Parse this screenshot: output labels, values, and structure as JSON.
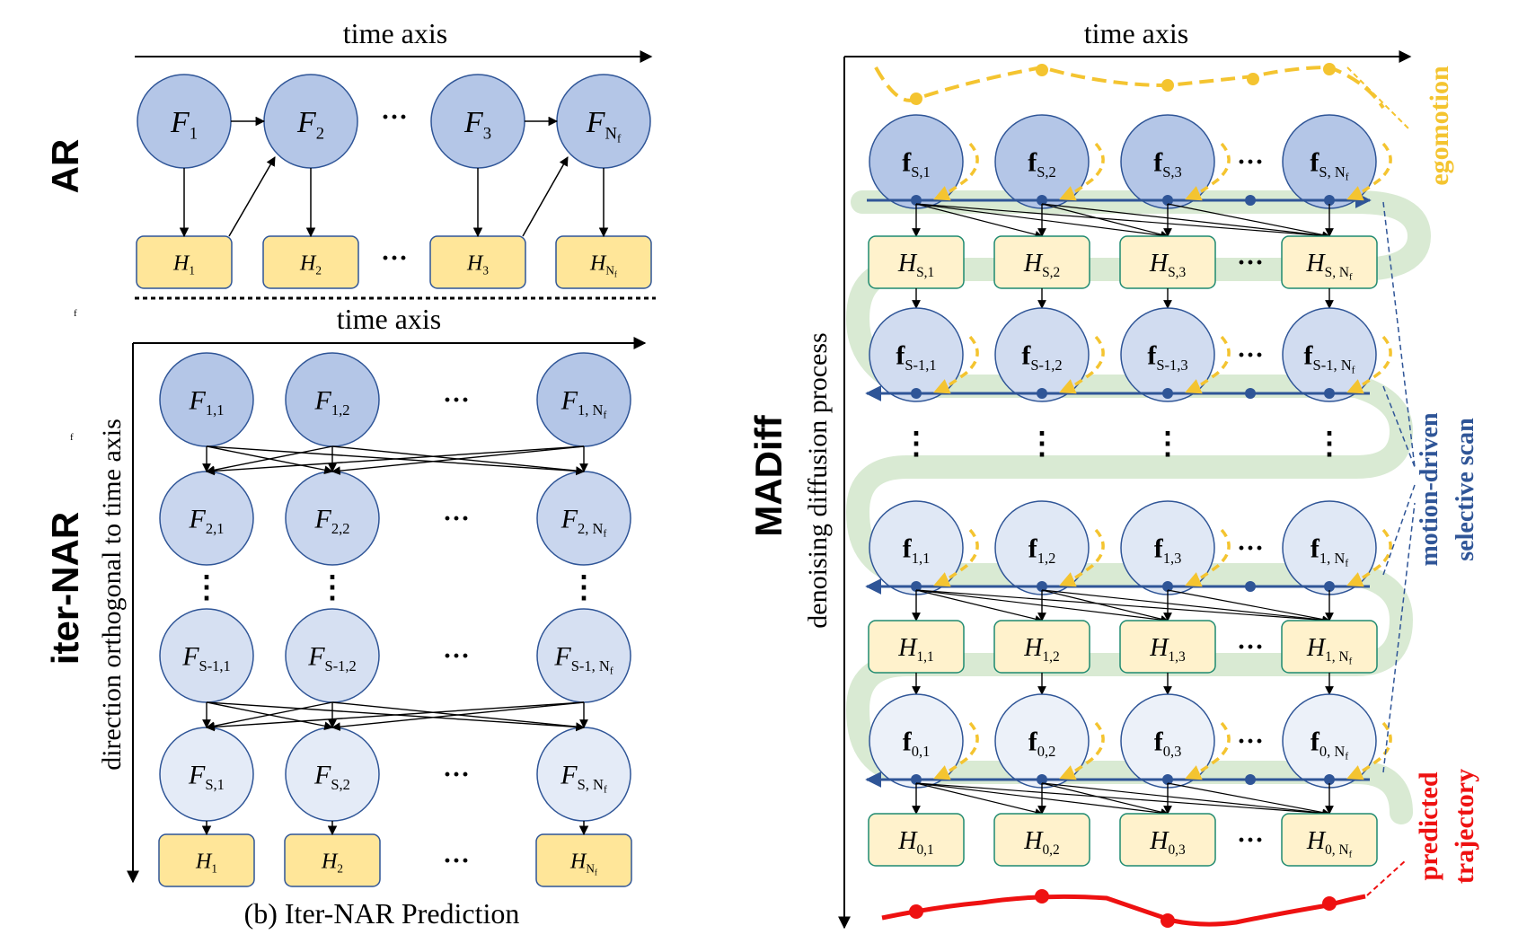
{
  "labels": {
    "ar_time_axis": "time axis",
    "ar_panel": "AR",
    "iter_time_axis": "time axis",
    "iter_panel": "iter-NAR",
    "iter_vertical_axis": "direction orthogonal to time axis",
    "iter_caption": "(b) Iter-NAR Prediction",
    "madiff_time_axis": "time axis",
    "madiff_panel": "MADiff",
    "madiff_vertical_axis": "denoising diffusion process",
    "egomotion": "egomotion",
    "scan_line1": "motion-driven",
    "scan_line2": "selective scan",
    "traj_line1": "predicted",
    "traj_line2": "trajectory",
    "stray_mark_1": "f",
    "stray_mark_2": "f",
    "ellipsis": "···",
    "vdots": "⋮"
  },
  "ar": {
    "frames": [
      {
        "base": "F",
        "sub": "1"
      },
      {
        "base": "F",
        "sub": "2"
      },
      {
        "base": "F",
        "sub": "3"
      },
      {
        "base": "F",
        "sub": "N",
        "subsub": "f"
      }
    ],
    "hiddens": [
      {
        "base": "H",
        "sub": "1"
      },
      {
        "base": "H",
        "sub": "2"
      },
      {
        "base": "H",
        "sub": "3"
      },
      {
        "base": "H",
        "sub": "N",
        "subsub": "f"
      }
    ]
  },
  "iter": {
    "rows": [
      [
        {
          "base": "F",
          "sub": "1,1"
        },
        {
          "base": "F",
          "sub": "1,2"
        },
        {
          "base": "F",
          "sub": "1, N",
          "subsub": "f"
        }
      ],
      [
        {
          "base": "F",
          "sub": "2,1"
        },
        {
          "base": "F",
          "sub": "2,2"
        },
        {
          "base": "F",
          "sub": "2, N",
          "subsub": "f"
        }
      ],
      [
        {
          "base": "F",
          "sub": "S-1,1"
        },
        {
          "base": "F",
          "sub": "S-1,2"
        },
        {
          "base": "F",
          "sub": "S-1, N",
          "subsub": "f"
        }
      ],
      [
        {
          "base": "F",
          "sub": "S,1"
        },
        {
          "base": "F",
          "sub": "S,2"
        },
        {
          "base": "F",
          "sub": "S, N",
          "subsub": "f"
        }
      ]
    ],
    "hiddens": [
      {
        "base": "H",
        "sub": "1"
      },
      {
        "base": "H",
        "sub": "2"
      },
      {
        "base": "H",
        "sub": "N",
        "subsub": "f"
      }
    ]
  },
  "madiff": {
    "rows": [
      {
        "type": "f",
        "cells": [
          {
            "base": "f",
            "sub": "S,1"
          },
          {
            "base": "f",
            "sub": "S,2"
          },
          {
            "base": "f",
            "sub": "S,3"
          },
          {
            "base": "f",
            "sub": "S, N",
            "subsub": "f"
          }
        ]
      },
      {
        "type": "H",
        "cells": [
          {
            "base": "H",
            "sub": "S,1"
          },
          {
            "base": "H",
            "sub": "S,2"
          },
          {
            "base": "H",
            "sub": "S,3"
          },
          {
            "base": "H",
            "sub": "S, N",
            "subsub": "f"
          }
        ]
      },
      {
        "type": "f",
        "cells": [
          {
            "base": "f",
            "sub": "S-1,1"
          },
          {
            "base": "f",
            "sub": "S-1,2"
          },
          {
            "base": "f",
            "sub": "S-1,3"
          },
          {
            "base": "f",
            "sub": "S-1, N",
            "subsub": "f"
          }
        ]
      },
      {
        "type": "f",
        "cells": [
          {
            "base": "f",
            "sub": "1,1"
          },
          {
            "base": "f",
            "sub": "1,2"
          },
          {
            "base": "f",
            "sub": "1,3"
          },
          {
            "base": "f",
            "sub": "1, N",
            "subsub": "f"
          }
        ]
      },
      {
        "type": "H",
        "cells": [
          {
            "base": "H",
            "sub": "1,1"
          },
          {
            "base": "H",
            "sub": "1,2"
          },
          {
            "base": "H",
            "sub": "1,3"
          },
          {
            "base": "H",
            "sub": "1, N",
            "subsub": "f"
          }
        ]
      },
      {
        "type": "f",
        "cells": [
          {
            "base": "f",
            "sub": "0,1"
          },
          {
            "base": "f",
            "sub": "0,2"
          },
          {
            "base": "f",
            "sub": "0,3"
          },
          {
            "base": "f",
            "sub": "0, N",
            "subsub": "f"
          }
        ]
      },
      {
        "type": "H",
        "cells": [
          {
            "base": "H",
            "sub": "0,1"
          },
          {
            "base": "H",
            "sub": "0,2"
          },
          {
            "base": "H",
            "sub": "0,3"
          },
          {
            "base": "H",
            "sub": "0, N",
            "subsub": "f"
          }
        ]
      }
    ]
  },
  "colors": {
    "ar_node": "#b4c6e7",
    "iter_row1": "#b4c6e7",
    "iter_row2": "#c9d6ee",
    "iter_row3": "#d6e0f2",
    "iter_row4": "#e4ebf7",
    "node_stroke": "#2f5597",
    "hidden_fill": "#ffe699",
    "hidden_stroke": "#2f5597",
    "madiff_rowS": "#b4c6e7",
    "madiff_rowS1": "#d1dcf0",
    "madiff_row1": "#e0e8f5",
    "madiff_row0": "#ecf1f9",
    "madiff_hidden_fill": "#fff2cc",
    "madiff_hidden_stroke": "#1f8a70",
    "scan_line": "#2f5597",
    "snake": "#d9ead3",
    "egomotion": "#f4c430",
    "trajectory": "#ee1111",
    "scan_label": "#2f5597"
  }
}
